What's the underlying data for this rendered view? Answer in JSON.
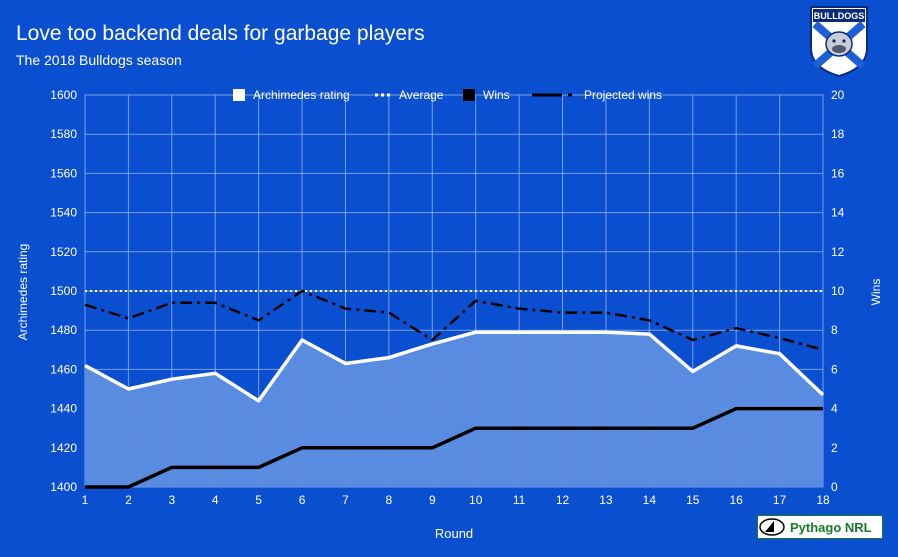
{
  "header": {
    "title": "Love too backend deals for garbage players",
    "subtitle": "The 2018 Bulldogs season"
  },
  "logo": {
    "text": "BULLDOGS",
    "icon": "bulldogs-crest-icon"
  },
  "brand": {
    "label": "Pythago NRL",
    "icon": "pythago-logo-icon"
  },
  "colors": {
    "background": "#0b4fd1",
    "area_fill": "#5e8ee0",
    "rating_line": "#ffffff",
    "average_line": "#ffffff",
    "wins_line": "#000000",
    "projected_line": "#000000",
    "grid": "#9bb8ee",
    "text": "#ffffff",
    "brand_green": "#1a7a2c"
  },
  "chart_data": {
    "type": "line",
    "xlabel": "Round",
    "ylabel_left": "Archimedes rating",
    "ylabel_right": "Wins",
    "ylim_left": [
      1400,
      1600
    ],
    "ylim_right": [
      0,
      20
    ],
    "yticks_left": [
      1400,
      1420,
      1440,
      1460,
      1480,
      1500,
      1520,
      1540,
      1560,
      1580,
      1600
    ],
    "yticks_right": [
      0,
      2,
      4,
      6,
      8,
      10,
      12,
      14,
      16,
      18,
      20
    ],
    "x": [
      1,
      2,
      3,
      4,
      5,
      6,
      7,
      8,
      9,
      10,
      11,
      12,
      13,
      14,
      15,
      16,
      17,
      18
    ],
    "grid": true,
    "legend_position": "top",
    "series": [
      {
        "name": "Archimedes rating",
        "axis": "left",
        "style": "area",
        "values": [
          1462,
          1450,
          1455,
          1458,
          1444,
          1475,
          1463,
          1466,
          1473,
          1479,
          1479,
          1479,
          1479,
          1478,
          1459,
          1472,
          1468,
          1447
        ]
      },
      {
        "name": "Average",
        "axis": "left",
        "style": "dotted",
        "values": [
          1500,
          1500,
          1500,
          1500,
          1500,
          1500,
          1500,
          1500,
          1500,
          1500,
          1500,
          1500,
          1500,
          1500,
          1500,
          1500,
          1500,
          1500
        ]
      },
      {
        "name": "Wins",
        "axis": "right",
        "style": "solid",
        "values": [
          0,
          0,
          1,
          1,
          1,
          2,
          2,
          2,
          2,
          3,
          3,
          3,
          3,
          3,
          3,
          4,
          4,
          4
        ]
      },
      {
        "name": "Projected wins",
        "axis": "right",
        "style": "dashdot",
        "values": [
          9.3,
          8.6,
          9.4,
          9.4,
          8.5,
          10.0,
          9.1,
          8.9,
          7.5,
          9.5,
          9.1,
          8.9,
          8.9,
          8.5,
          7.5,
          8.1,
          7.6,
          7.0
        ]
      }
    ]
  }
}
